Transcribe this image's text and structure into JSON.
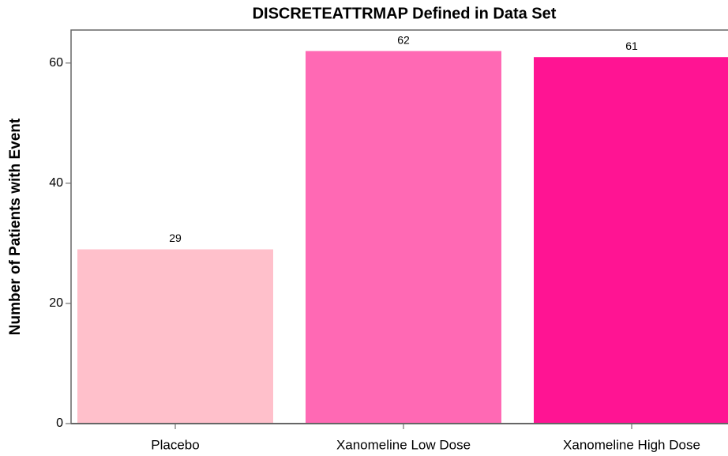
{
  "chart_data": {
    "type": "bar",
    "title": "DISCRETEATTRMAP Defined in Data Set",
    "y_label": "Number of Patients with Event",
    "categories": [
      "Placebo",
      "Xanomeline Low Dose",
      "Xanomeline High Dose"
    ],
    "values": [
      29,
      62,
      61
    ],
    "colors": [
      "#FFC0CB",
      "#FF69B4",
      "#FF1493"
    ],
    "ylim": [
      0,
      65.5
    ],
    "yticks": [
      0,
      20,
      40,
      60
    ]
  }
}
